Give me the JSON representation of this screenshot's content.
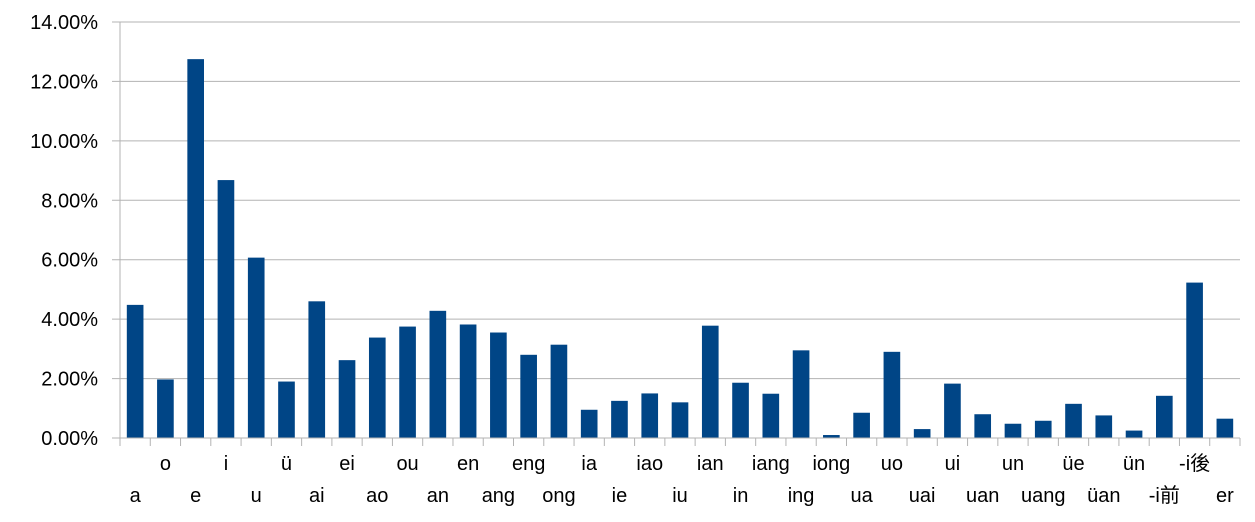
{
  "chart_data": {
    "type": "bar",
    "title": "",
    "xlabel": "",
    "ylabel": "",
    "ylim": [
      0,
      14
    ],
    "y_ticks": [
      0,
      2,
      4,
      6,
      8,
      10,
      12,
      14
    ],
    "y_tick_labels": [
      "0.00%",
      "2.00%",
      "4.00%",
      "6.00%",
      "8.00%",
      "10.00%",
      "12.00%",
      "14.00%"
    ],
    "grid": true,
    "legend": "none",
    "bar_color": "#004586",
    "categories": [
      "a",
      "o",
      "e",
      "i",
      "u",
      "ü",
      "ai",
      "ei",
      "ao",
      "ou",
      "an",
      "en",
      "ang",
      "eng",
      "ong",
      "ia",
      "ie",
      "iao",
      "iu",
      "ian",
      "in",
      "iang",
      "ing",
      "iong",
      "ua",
      "uo",
      "uai",
      "ui",
      "uan",
      "un",
      "uang",
      "üe",
      "üan",
      "ün",
      "-i前",
      "-i後",
      "er"
    ],
    "values": [
      4.48,
      1.97,
      12.75,
      8.68,
      6.07,
      1.9,
      4.6,
      2.62,
      3.38,
      3.75,
      4.28,
      3.82,
      3.55,
      2.8,
      3.14,
      0.95,
      1.25,
      1.5,
      1.2,
      3.78,
      1.86,
      1.49,
      2.95,
      0.1,
      0.85,
      2.9,
      0.3,
      1.83,
      0.8,
      0.48,
      0.58,
      1.15,
      0.76,
      0.25,
      1.42,
      5.23,
      0.65
    ]
  }
}
